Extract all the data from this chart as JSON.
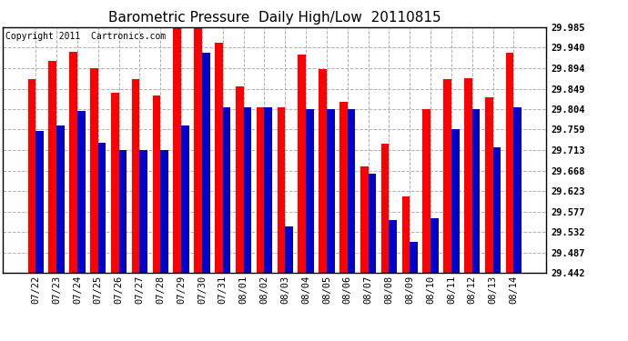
{
  "title": "Barometric Pressure  Daily High/Low  20110815",
  "copyright": "Copyright 2011  Cartronics.com",
  "categories": [
    "07/22",
    "07/23",
    "07/24",
    "07/25",
    "07/26",
    "07/27",
    "07/28",
    "07/29",
    "07/30",
    "07/31",
    "08/01",
    "08/02",
    "08/03",
    "08/04",
    "08/05",
    "08/06",
    "08/07",
    "08/08",
    "08/09",
    "08/10",
    "08/11",
    "08/12",
    "08/13",
    "08/14"
  ],
  "highs": [
    29.87,
    29.91,
    29.93,
    29.895,
    29.84,
    29.87,
    29.835,
    29.985,
    29.985,
    29.95,
    29.855,
    29.808,
    29.808,
    29.925,
    29.892,
    29.82,
    29.678,
    29.727,
    29.61,
    29.804,
    29.87,
    29.872,
    29.83,
    29.928
  ],
  "lows": [
    29.755,
    29.768,
    29.8,
    29.73,
    29.713,
    29.713,
    29.713,
    29.768,
    29.928,
    29.808,
    29.808,
    29.808,
    29.545,
    29.804,
    29.804,
    29.804,
    29.661,
    29.558,
    29.51,
    29.563,
    29.76,
    29.804,
    29.72,
    29.808
  ],
  "high_color": "#ff0000",
  "low_color": "#0000cc",
  "bg_color": "#ffffff",
  "plot_bg_color": "#ffffff",
  "grid_color": "#b0b0b0",
  "ymin": 29.442,
  "ymax": 29.985,
  "yticks": [
    29.985,
    29.94,
    29.894,
    29.849,
    29.804,
    29.759,
    29.713,
    29.668,
    29.623,
    29.577,
    29.532,
    29.487,
    29.442
  ],
  "title_fontsize": 11,
  "copyright_fontsize": 7,
  "tick_fontsize": 7.5,
  "bar_width": 0.38
}
